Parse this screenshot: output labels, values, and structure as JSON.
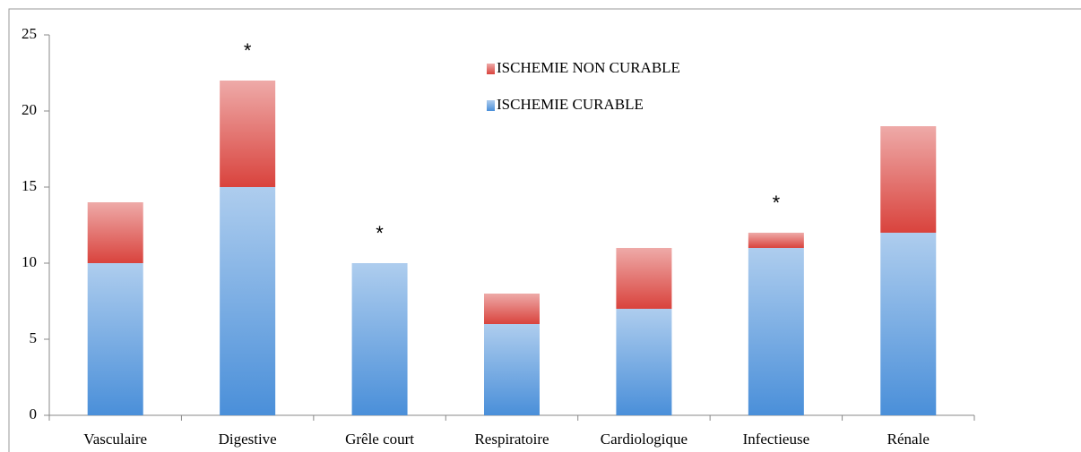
{
  "chart_data": {
    "type": "stacked_bar",
    "categories": [
      "Vasculaire",
      "Digestive",
      "Grêle court",
      "Respiratoire",
      "Cardiologique",
      "Infectieuse",
      "Rénale"
    ],
    "series": [
      {
        "name": "ISCHEMIE CURABLE",
        "color": "#4a8fd9",
        "values": [
          10,
          15,
          10,
          6,
          7,
          11,
          12
        ]
      },
      {
        "name": "ISCHEMIE NON CURABLE",
        "color": "#d9433d",
        "values": [
          4,
          7,
          0,
          2,
          4,
          1,
          7
        ]
      }
    ],
    "ylim": [
      0,
      25
    ],
    "yticks": [
      0,
      5,
      10,
      15,
      20,
      25
    ],
    "annotations": [
      {
        "text": "*",
        "category": "Digestive"
      },
      {
        "text": "*",
        "category": "Grêle court"
      },
      {
        "text": "*",
        "category": "Infectieuse"
      }
    ],
    "legend": "top-center"
  }
}
